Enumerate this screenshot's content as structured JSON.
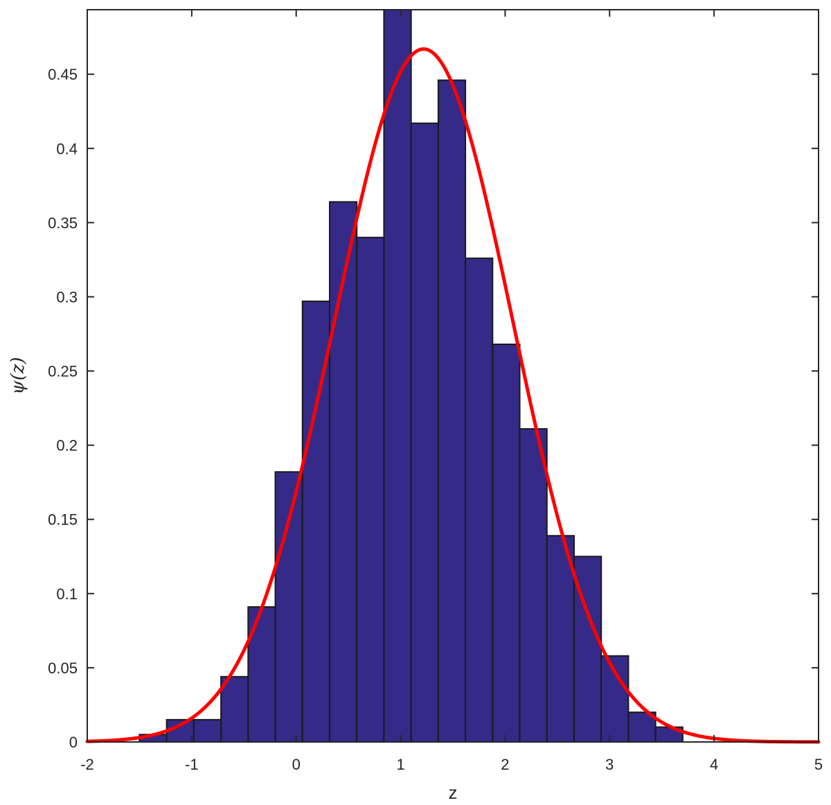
{
  "chart_data": {
    "type": "bar",
    "title": "",
    "xlabel": "z",
    "ylabel": "ψ(z)",
    "xlim": [
      -2,
      5
    ],
    "ylim": [
      0,
      0.4935
    ],
    "xticks": [
      -2,
      -1,
      0,
      1,
      2,
      3,
      4,
      5
    ],
    "xtick_labels": [
      "-2",
      "-1",
      "0",
      "1",
      "2",
      "3",
      "4",
      "5"
    ],
    "yticks": [
      0,
      0.05,
      0.1,
      0.15,
      0.2,
      0.25,
      0.3,
      0.35,
      0.4,
      0.45
    ],
    "ytick_labels": [
      "0",
      "0.05",
      "0.1",
      "0.15",
      "0.2",
      "0.25",
      "0.3",
      "0.35",
      "0.4",
      "0.45"
    ],
    "grid": false,
    "box": true,
    "series": [
      {
        "type": "histogram",
        "color": "#352a87",
        "edge_color": "#1a1a1a",
        "bin_edges": [
          -1.5,
          -1.24,
          -0.98,
          -0.72,
          -0.46,
          -0.2,
          0.06,
          0.32,
          0.58,
          0.84,
          1.1,
          1.36,
          1.62,
          1.88,
          2.14,
          2.4,
          2.66,
          2.92,
          3.18,
          3.44,
          3.7
        ],
        "values": [
          0.005,
          0.015,
          0.015,
          0.044,
          0.091,
          0.182,
          0.297,
          0.364,
          0.34,
          0.494,
          0.417,
          0.446,
          0.326,
          0.268,
          0.211,
          0.139,
          0.125,
          0.058,
          0.02,
          0.01
        ]
      },
      {
        "type": "line",
        "color": "#ff0000",
        "curve": "gaussian",
        "mean": 1.22,
        "std": 0.855,
        "peak": 0.467,
        "x_range": [
          -2,
          5
        ]
      }
    ]
  }
}
